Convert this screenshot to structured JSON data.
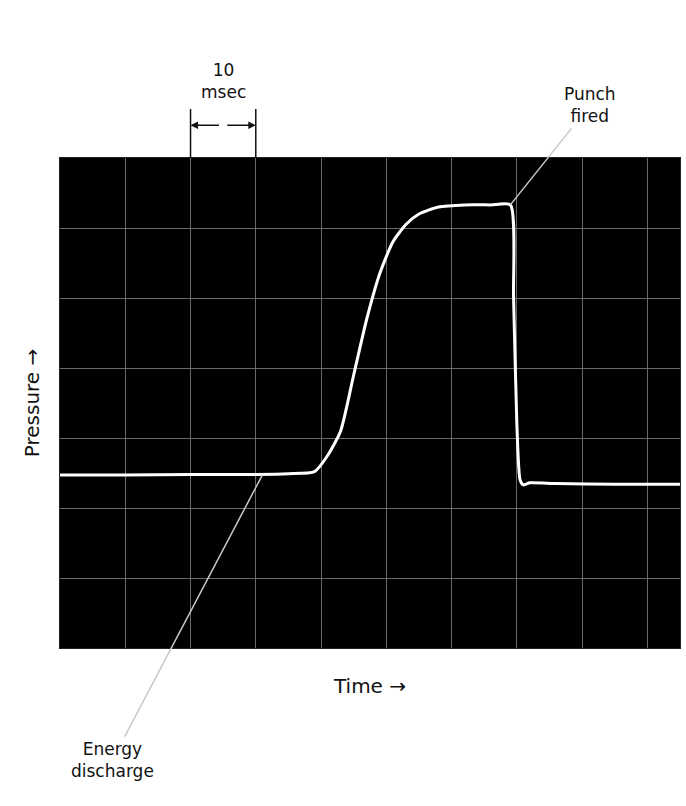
{
  "chart_data": {
    "type": "line",
    "x_label": "Time →",
    "y_label": "Pressure →",
    "x": [
      0,
      10,
      20,
      30,
      35,
      39,
      41,
      43,
      45,
      47,
      49,
      51,
      53,
      55,
      58,
      62,
      66,
      69,
      69.5,
      70,
      70.5,
      71,
      72,
      76,
      85,
      95
    ],
    "values": [
      2.47,
      2.47,
      2.48,
      2.48,
      2.49,
      2.52,
      2.75,
      3.1,
      3.9,
      4.7,
      5.35,
      5.8,
      6.05,
      6.2,
      6.3,
      6.33,
      6.33,
      6.33,
      5.0,
      3.2,
      2.4,
      2.33,
      2.36,
      2.35,
      2.34,
      2.34
    ],
    "color": "#ffffff",
    "xlim": [
      0,
      95
    ],
    "xticks": [
      0,
      10,
      20,
      30,
      40,
      50,
      60,
      70,
      80,
      90
    ],
    "ylim": [
      0,
      7
    ],
    "yticks": [
      0,
      1,
      2,
      3,
      4,
      5,
      6,
      7
    ],
    "grid": true,
    "tick_labels": false,
    "annotations": [
      {
        "text": "Energy discharge",
        "x": 31,
        "y": 2.47
      },
      {
        "text": "Punch fired",
        "x": 69,
        "y": 6.33
      }
    ],
    "scale_bar": {
      "text": "10 msec",
      "from": 20,
      "to": 30
    }
  }
}
